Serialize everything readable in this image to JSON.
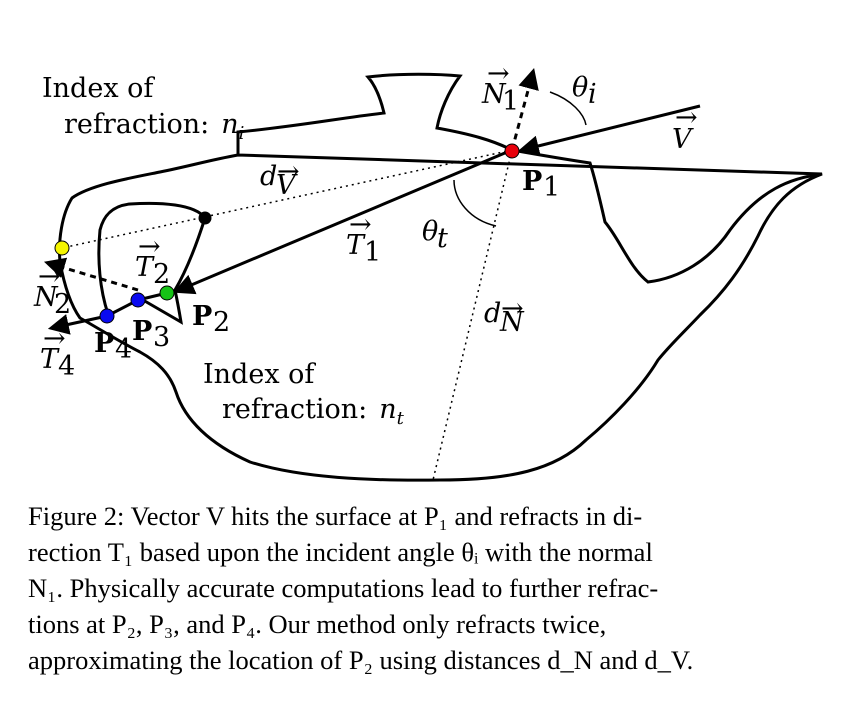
{
  "labels": {
    "index_ni_1": "Index of",
    "index_ni_2": "refraction:",
    "ni": "n",
    "ni_sub": "i",
    "index_nt_1": "Index of",
    "index_nt_2": "refraction:",
    "nt": "n",
    "nt_sub": "t",
    "N1": "N",
    "N1_sub": "1",
    "theta_i": "θ",
    "theta_i_sub": "i",
    "V": "V",
    "P1": "P",
    "P1_sub": "1",
    "dV": "d",
    "dV_sub": "V",
    "theta_t": "θ",
    "theta_t_sub": "t",
    "T1": "T",
    "T1_sub": "1",
    "T2": "T",
    "T2_sub": "2",
    "N2": "N",
    "N2_sub": "2",
    "P2": "P",
    "P2_sub": "2",
    "P3": "P",
    "P3_sub": "3",
    "P4": "P",
    "P4_sub": "4",
    "T4": "T",
    "T4_sub": "4",
    "dN": "d",
    "dN_sub": "N"
  },
  "caption": {
    "lines": [
      "Figure 2: Vector V hits the surface at P₁ and refracts in di-",
      "rection T₁ based upon the incident angle θᵢ with the normal",
      "N₁. Physically accurate computations lead to further refrac-",
      "tions at P₂, P₃, and P₄. Our method only refracts twice,",
      "approximating the location of P₂ using distances d_N and d_V."
    ]
  },
  "colors": {
    "P1": "#e8000b",
    "P2": "#16c316",
    "P3": "#0a0af0",
    "P4": "#0a0af0",
    "exit_point": "#f5f500",
    "inner_point": "#000000"
  }
}
